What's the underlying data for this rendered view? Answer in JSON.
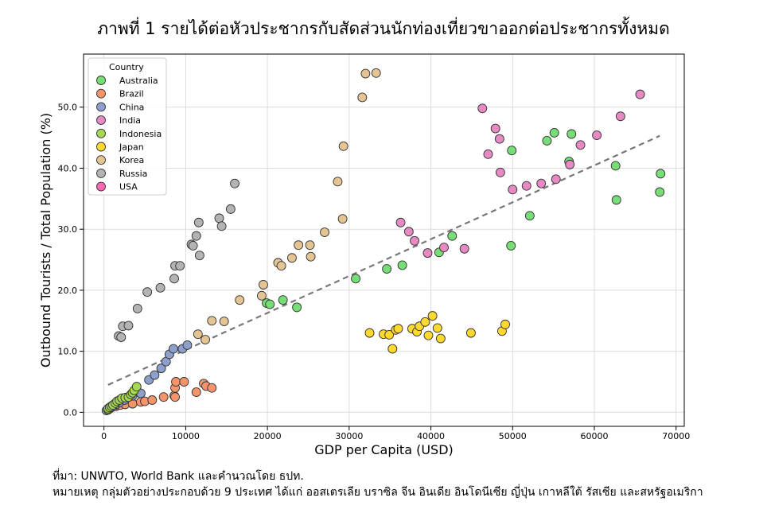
{
  "title": "ภาพที่ 1 รายได้ต่อหัวประชากรกับสัดส่วนนักท่องเที่ยวขาออกต่อประชากรทั้งหมด",
  "source": "ที่มา: UNWTO, World Bank และคำนวณโดย ธปท.",
  "note": "หมายเหตุ กลุ่มตัวอย่างประกอบด้วย 9 ประเทศ ได้แก่ ออสเตรเลีย บราซิล จีน อินเดีย อินโดนีเซีย ญี่ปุ่น เกาหลีใต้ รัสเซีย และสหรัฐอเมริกา",
  "chart_data": {
    "type": "scatter",
    "xlabel": "GDP per Capita (USD)",
    "ylabel": "Outbound Tourists / Total Population (%)",
    "xlim": [
      -2500,
      71000
    ],
    "ylim": [
      -2.3,
      58.7
    ],
    "xticks": [
      0,
      10000,
      20000,
      30000,
      40000,
      50000,
      60000,
      70000
    ],
    "yticks": [
      0,
      10,
      20,
      30,
      40,
      50
    ],
    "ytick_labels": [
      "0.0",
      "10.0",
      "20.0",
      "30.0",
      "40.0",
      "50.0"
    ],
    "grid": true,
    "legend_title": "Country",
    "legend_position": "top-left",
    "trendline": {
      "style": "dashed",
      "color": "#777777",
      "x": [
        500,
        68000
      ],
      "y": [
        4.5,
        45.3
      ]
    },
    "series": [
      {
        "name": "Australia",
        "color": "#77dd77",
        "points": [
          [
            19900,
            17.9
          ],
          [
            20300,
            17.7
          ],
          [
            21900,
            18.4
          ],
          [
            23600,
            17.2
          ],
          [
            30800,
            21.9
          ],
          [
            34600,
            23.5
          ],
          [
            36500,
            24.1
          ],
          [
            41000,
            26.2
          ],
          [
            42600,
            28.9
          ],
          [
            49800,
            27.3
          ],
          [
            52100,
            32.2
          ],
          [
            54200,
            44.5
          ],
          [
            55100,
            45.8
          ],
          [
            56900,
            41.1
          ],
          [
            57200,
            45.6
          ],
          [
            62600,
            40.4
          ],
          [
            62700,
            34.8
          ],
          [
            68000,
            36.1
          ],
          [
            68100,
            39.1
          ],
          [
            49900,
            42.9
          ]
        ]
      },
      {
        "name": "Brazil",
        "color": "#f7956a",
        "points": [
          [
            1500,
            1.0
          ],
          [
            2000,
            1.2
          ],
          [
            2600,
            1.3
          ],
          [
            3500,
            1.4
          ],
          [
            4500,
            1.7
          ],
          [
            5000,
            1.8
          ],
          [
            5900,
            2.0
          ],
          [
            7300,
            2.5
          ],
          [
            8600,
            2.7
          ],
          [
            8700,
            4.0
          ],
          [
            8800,
            5.0
          ],
          [
            9800,
            5.0
          ],
          [
            11300,
            3.3
          ],
          [
            12200,
            4.7
          ],
          [
            12500,
            4.3
          ],
          [
            13200,
            4.0
          ],
          [
            8700,
            2.5
          ]
        ]
      },
      {
        "name": "China",
        "color": "#8da0cb",
        "points": [
          [
            300,
            0.3
          ],
          [
            500,
            0.4
          ],
          [
            700,
            0.6
          ],
          [
            950,
            0.8
          ],
          [
            1200,
            1.0
          ],
          [
            1500,
            1.3
          ],
          [
            1900,
            1.6
          ],
          [
            2500,
            2.0
          ],
          [
            3000,
            2.5
          ],
          [
            3500,
            2.7
          ],
          [
            4500,
            3.1
          ],
          [
            5500,
            5.3
          ],
          [
            6200,
            6.1
          ],
          [
            7000,
            7.2
          ],
          [
            7600,
            8.3
          ],
          [
            8000,
            9.5
          ],
          [
            8500,
            10.4
          ],
          [
            9600,
            10.4
          ],
          [
            10200,
            11.0
          ]
        ]
      },
      {
        "name": "India",
        "color": "#e78ac3",
        "points": [
          [
            36300,
            31.1
          ],
          [
            37300,
            29.6
          ],
          [
            38000,
            28.1
          ],
          [
            39600,
            26.1
          ],
          [
            41600,
            27.0
          ],
          [
            44100,
            26.8
          ],
          [
            46300,
            49.8
          ],
          [
            47000,
            42.3
          ],
          [
            47900,
            46.5
          ],
          [
            48400,
            44.8
          ],
          [
            48500,
            39.3
          ],
          [
            50000,
            36.5
          ],
          [
            51700,
            37.1
          ],
          [
            53500,
            37.5
          ],
          [
            55300,
            38.2
          ],
          [
            57000,
            40.6
          ],
          [
            58300,
            43.8
          ],
          [
            60300,
            45.4
          ],
          [
            63200,
            48.5
          ],
          [
            65600,
            52.1
          ]
        ]
      },
      {
        "name": "Indonesia",
        "color": "#a6d854",
        "points": [
          [
            500,
            0.6
          ],
          [
            700,
            0.8
          ],
          [
            900,
            1.0
          ],
          [
            1100,
            1.2
          ],
          [
            1400,
            1.5
          ],
          [
            1600,
            1.8
          ],
          [
            1900,
            2.0
          ],
          [
            2200,
            2.3
          ],
          [
            2600,
            2.4
          ],
          [
            3000,
            2.5
          ],
          [
            3300,
            2.9
          ],
          [
            3500,
            3.2
          ],
          [
            3700,
            3.6
          ],
          [
            4000,
            4.2
          ]
        ]
      },
      {
        "name": "Japan",
        "color": "#ffd92f",
        "points": [
          [
            32500,
            13.0
          ],
          [
            34200,
            12.8
          ],
          [
            34900,
            12.7
          ],
          [
            35300,
            10.4
          ],
          [
            35700,
            13.5
          ],
          [
            36000,
            13.7
          ],
          [
            37700,
            13.7
          ],
          [
            38300,
            13.2
          ],
          [
            38600,
            14.1
          ],
          [
            39300,
            14.8
          ],
          [
            39700,
            12.6
          ],
          [
            40200,
            15.8
          ],
          [
            40800,
            13.8
          ],
          [
            41200,
            12.1
          ],
          [
            44900,
            13.0
          ],
          [
            48700,
            13.3
          ],
          [
            49100,
            14.4
          ]
        ]
      },
      {
        "name": "Korea",
        "color": "#e5c494",
        "points": [
          [
            11500,
            12.8
          ],
          [
            12400,
            11.9
          ],
          [
            13200,
            15.0
          ],
          [
            14700,
            14.9
          ],
          [
            16600,
            18.4
          ],
          [
            19300,
            19.1
          ],
          [
            19500,
            20.9
          ],
          [
            21300,
            24.5
          ],
          [
            21700,
            24.0
          ],
          [
            23000,
            25.3
          ],
          [
            23800,
            27.4
          ],
          [
            25200,
            27.4
          ],
          [
            25300,
            25.5
          ],
          [
            27000,
            29.5
          ],
          [
            28600,
            37.8
          ],
          [
            29200,
            31.7
          ],
          [
            29300,
            43.6
          ],
          [
            31600,
            51.6
          ],
          [
            32000,
            55.5
          ],
          [
            33300,
            55.6
          ]
        ]
      },
      {
        "name": "Russia",
        "color": "#b3b3b3",
        "points": [
          [
            1800,
            12.5
          ],
          [
            2100,
            12.3
          ],
          [
            2300,
            14.1
          ],
          [
            3000,
            14.2
          ],
          [
            4100,
            17.0
          ],
          [
            5300,
            19.7
          ],
          [
            6900,
            20.4
          ],
          [
            8600,
            21.9
          ],
          [
            8700,
            24.0
          ],
          [
            9300,
            24.0
          ],
          [
            10700,
            27.5
          ],
          [
            10900,
            27.3
          ],
          [
            11300,
            28.9
          ],
          [
            11600,
            31.1
          ],
          [
            11700,
            25.7
          ],
          [
            14100,
            31.8
          ],
          [
            14400,
            30.5
          ],
          [
            15500,
            33.3
          ],
          [
            16000,
            37.5
          ]
        ]
      }
    ]
  },
  "legend_extra": {
    "name": "USA",
    "color": "#ff69b4"
  }
}
